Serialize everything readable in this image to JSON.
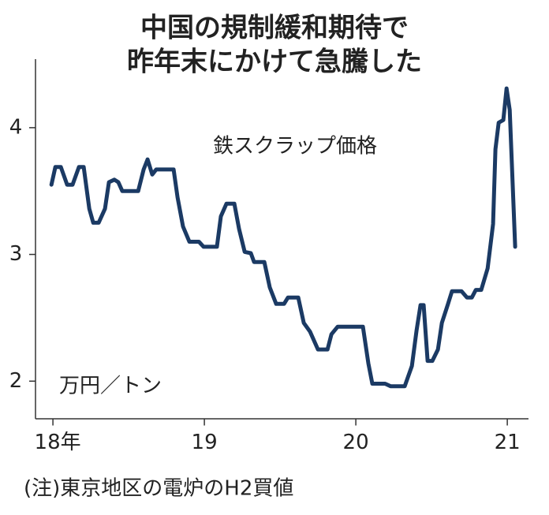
{
  "chart_data": {
    "type": "line",
    "title": [
      "中国の規制緩和期待で",
      "昨年末にかけて急騰した"
    ],
    "y_label": "万円／トン",
    "note": "(注)東京地区の電炉のH2買値",
    "xlim": [
      17.885,
      21.14
    ],
    "xticks": [
      {
        "value": 18,
        "label": "18年"
      },
      19,
      20,
      21
    ],
    "ylim": [
      1.7,
      4.55
    ],
    "yticks": [
      2,
      3,
      4
    ],
    "x": [
      17.99,
      18.016,
      18.052,
      18.094,
      18.13,
      18.172,
      18.203,
      18.24,
      18.266,
      18.302,
      18.344,
      18.37,
      18.406,
      18.432,
      18.458,
      18.563,
      18.599,
      18.625,
      18.656,
      18.682,
      18.797,
      18.823,
      18.859,
      18.901,
      18.964,
      18.995,
      19.083,
      19.109,
      19.146,
      19.198,
      19.229,
      19.266,
      19.307,
      19.328,
      19.396,
      19.432,
      19.474,
      19.526,
      19.552,
      19.62,
      19.656,
      19.698,
      19.724,
      19.75,
      19.813,
      19.839,
      19.88,
      20.047,
      20.083,
      20.109,
      20.193,
      20.229,
      20.323,
      20.37,
      20.401,
      20.427,
      20.448,
      20.474,
      20.505,
      20.542,
      20.568,
      20.609,
      20.635,
      20.698,
      20.734,
      20.766,
      20.792,
      20.828,
      20.87,
      20.906,
      20.922,
      20.943,
      20.974,
      20.995,
      21.016,
      21.052
    ],
    "series": [
      {
        "name": "鉄スクラップ価格",
        "color": "#1b3a64",
        "values": [
          3.55,
          3.69,
          3.69,
          3.55,
          3.55,
          3.69,
          3.69,
          3.36,
          3.25,
          3.25,
          3.36,
          3.57,
          3.59,
          3.57,
          3.5,
          3.5,
          3.67,
          3.75,
          3.63,
          3.67,
          3.67,
          3.45,
          3.22,
          3.1,
          3.1,
          3.06,
          3.06,
          3.3,
          3.4,
          3.4,
          3.2,
          3.02,
          3.01,
          2.94,
          2.94,
          2.74,
          2.61,
          2.61,
          2.66,
          2.66,
          2.46,
          2.39,
          2.32,
          2.25,
          2.25,
          2.37,
          2.43,
          2.43,
          2.14,
          1.98,
          1.98,
          1.96,
          1.96,
          2.12,
          2.4,
          2.6,
          2.6,
          2.16,
          2.16,
          2.25,
          2.46,
          2.61,
          2.71,
          2.71,
          2.66,
          2.66,
          2.72,
          2.72,
          2.89,
          3.24,
          3.83,
          4.04,
          4.06,
          4.31,
          4.14,
          3.06
        ]
      }
    ]
  }
}
